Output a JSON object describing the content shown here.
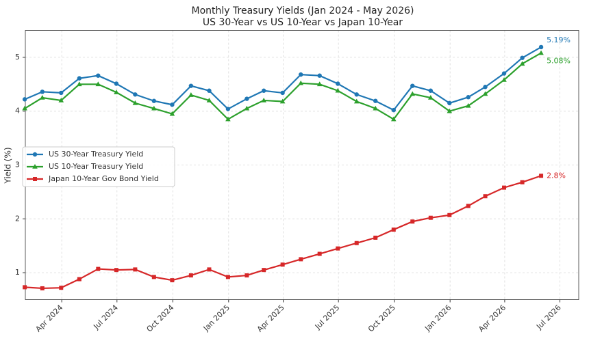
{
  "chart_data": {
    "type": "line",
    "title": "Monthly Treasury Yields (Jan 2024 - May 2026)",
    "subtitle": "US 30-Year vs US 10-Year vs Japan 10-Year",
    "y_label": "Yield (%)",
    "x": [
      "2024-01",
      "2024-02",
      "2024-03",
      "2024-04",
      "2024-05",
      "2024-06",
      "2024-07",
      "2024-08",
      "2024-09",
      "2024-10",
      "2024-11",
      "2024-12",
      "2025-01",
      "2025-02",
      "2025-03",
      "2025-04",
      "2025-05",
      "2025-06",
      "2025-07",
      "2025-08",
      "2025-09",
      "2025-10",
      "2025-11",
      "2025-12",
      "2026-01",
      "2026-02",
      "2026-03",
      "2026-04",
      "2026-05"
    ],
    "series": [
      {
        "name": "US 30-Year Treasury Yield",
        "color": "#1f77b4",
        "marker": "circle",
        "values": [
          4.22,
          4.36,
          4.34,
          4.61,
          4.66,
          4.51,
          4.31,
          4.19,
          4.12,
          4.47,
          4.38,
          4.04,
          4.23,
          4.38,
          4.34,
          4.68,
          4.66,
          4.51,
          4.31,
          4.19,
          4.02,
          4.47,
          4.38,
          4.15,
          4.26,
          4.45,
          4.7,
          4.99,
          5.19
        ],
        "value_labels": [
          null,
          null,
          null,
          null,
          null,
          null,
          null,
          null,
          null,
          null,
          null,
          null,
          null,
          null,
          null,
          null,
          null,
          null,
          null,
          null,
          null,
          null,
          null,
          null,
          null,
          null,
          null,
          null,
          "5.19%"
        ]
      },
      {
        "name": "US 10-Year Treasury Yield",
        "color": "#2ca02c",
        "marker": "triangle",
        "values": [
          4.05,
          4.25,
          4.2,
          4.5,
          4.5,
          4.35,
          4.15,
          4.05,
          3.95,
          4.3,
          4.2,
          3.85,
          4.05,
          4.2,
          4.18,
          4.52,
          4.5,
          4.38,
          4.18,
          4.05,
          3.85,
          4.32,
          4.25,
          4.0,
          4.1,
          4.32,
          4.58,
          4.88,
          5.08
        ],
        "value_labels": [
          null,
          null,
          null,
          null,
          null,
          null,
          null,
          null,
          null,
          null,
          null,
          null,
          null,
          null,
          null,
          null,
          null,
          null,
          null,
          null,
          null,
          null,
          null,
          null,
          null,
          null,
          null,
          null,
          "5.08%"
        ]
      },
      {
        "name": "Japan 10-Year Gov Bond Yield",
        "color": "#d62728",
        "marker": "square",
        "values": [
          0.73,
          0.71,
          0.72,
          0.88,
          1.07,
          1.05,
          1.06,
          0.92,
          0.86,
          0.95,
          1.06,
          0.92,
          0.95,
          1.05,
          1.15,
          1.25,
          1.35,
          1.45,
          1.55,
          1.65,
          1.8,
          1.95,
          2.02,
          2.07,
          2.24,
          2.42,
          2.58,
          2.68,
          2.8
        ],
        "value_labels": [
          null,
          null,
          null,
          null,
          null,
          null,
          null,
          null,
          null,
          null,
          null,
          null,
          null,
          null,
          null,
          null,
          null,
          null,
          null,
          null,
          null,
          null,
          null,
          null,
          null,
          null,
          null,
          null,
          "2.8%"
        ]
      }
    ],
    "xlim": [
      "2024-02",
      "2026-08"
    ],
    "xticks": [
      {
        "value": "2024-04",
        "label": "Apr 2024"
      },
      {
        "value": "2024-07",
        "label": "Jul 2024"
      },
      {
        "value": "2024-10",
        "label": "Oct 2024"
      },
      {
        "value": "2025-01",
        "label": "Jan 2025"
      },
      {
        "value": "2025-04",
        "label": "Apr 2025"
      },
      {
        "value": "2025-07",
        "label": "Jul 2025"
      },
      {
        "value": "2025-10",
        "label": "Oct 2025"
      },
      {
        "value": "2026-01",
        "label": "Jan 2026"
      },
      {
        "value": "2026-04",
        "label": "Apr 2026"
      },
      {
        "value": "2026-07",
        "label": "Jul 2026"
      }
    ],
    "ylim": [
      0.5,
      5.5
    ],
    "yticks": [
      1,
      2,
      3,
      4,
      5
    ],
    "grid": true,
    "legend": "left"
  }
}
